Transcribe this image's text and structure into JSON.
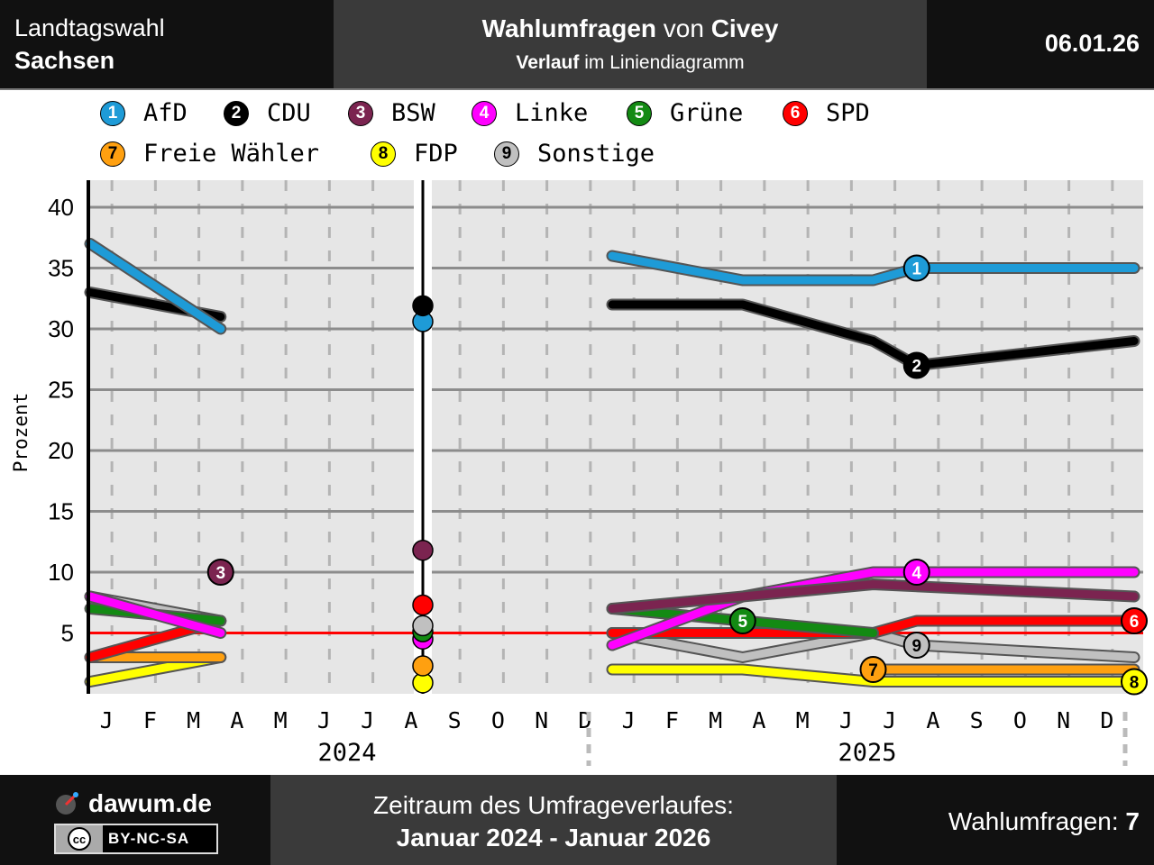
{
  "header": {
    "region_line1": "Landtagswahl",
    "region_line2": "Sachsen",
    "title_bold1": "Wahlumfragen",
    "title_mid": " von ",
    "title_bold2": "Civey",
    "subtitle_bold": "Verlauf",
    "subtitle_rest": " im Liniendiagramm",
    "date": "06.01.26"
  },
  "footer": {
    "brand": "dawum.de",
    "license": "BY-NC-SA",
    "span_label": "Zeitraum des Umfrageverlaufes:",
    "span_value": "Januar 2024 - Januar 2026",
    "count_label": "Wahlumfragen: ",
    "count_value": "7"
  },
  "legend": [
    {
      "num": "1",
      "name": "AfD",
      "color": "#1E9BD7"
    },
    {
      "num": "2",
      "name": "CDU",
      "color": "#000000"
    },
    {
      "num": "3",
      "name": "BSW",
      "color": "#7B2450"
    },
    {
      "num": "4",
      "name": "Linke",
      "color": "#FF00FF"
    },
    {
      "num": "5",
      "name": "Grüne",
      "color": "#138A13"
    },
    {
      "num": "6",
      "name": "SPD",
      "color": "#FF0000"
    },
    {
      "num": "7",
      "name": "Freie Wähler",
      "color": "#FFA010"
    },
    {
      "num": "8",
      "name": "FDP",
      "color": "#FFFF00"
    },
    {
      "num": "9",
      "name": "Sonstige",
      "color": "#C0C0C0"
    }
  ],
  "chart_data": {
    "type": "line",
    "ylabel": "Prozent",
    "ylim": [
      0,
      42
    ],
    "yticks": [
      5,
      10,
      15,
      20,
      25,
      30,
      35,
      40
    ],
    "threshold": 5,
    "x_range": [
      "2024-01",
      "2026-01"
    ],
    "month_labels": [
      "J",
      "F",
      "M",
      "A",
      "M",
      "J",
      "J",
      "A",
      "S",
      "O",
      "N",
      "D",
      "J",
      "F",
      "M",
      "A",
      "M",
      "J",
      "J",
      "A",
      "S",
      "O",
      "N",
      "D"
    ],
    "year_labels": [
      "2024",
      "2025"
    ],
    "election": {
      "date": "2024-09-01",
      "results": {
        "CDU": 31.9,
        "AfD": 30.6,
        "BSW": 11.8,
        "SPD": 7.3,
        "Sonstige": 5.6,
        "Grüne": 5.1,
        "Linke": 4.5,
        "Freie Wähler": 2.3,
        "FDP": 0.9
      }
    },
    "series": [
      {
        "name": "AfD",
        "num": "1",
        "color": "#1E9BD7",
        "segments": [
          [
            [
              "2024-01",
              37
            ],
            [
              "2024-04",
              30
            ]
          ],
          [
            [
              "2025-01",
              36
            ],
            [
              "2025-04",
              34
            ],
            [
              "2025-07",
              34
            ],
            [
              "2025-08",
              35
            ],
            [
              "2026-01",
              35
            ]
          ]
        ],
        "badge": [
          "2025-08",
          35
        ]
      },
      {
        "name": "CDU",
        "num": "2",
        "color": "#000000",
        "segments": [
          [
            [
              "2024-01",
              33
            ],
            [
              "2024-04",
              31
            ]
          ],
          [
            [
              "2025-01",
              32
            ],
            [
              "2025-04",
              32
            ],
            [
              "2025-07",
              29
            ],
            [
              "2025-08",
              27
            ],
            [
              "2026-01",
              29
            ]
          ]
        ],
        "badge": [
          "2025-08",
          27
        ]
      },
      {
        "name": "BSW",
        "num": "3",
        "color": "#7B2450",
        "segments": [
          [
            [
              "2025-01",
              7
            ],
            [
              "2025-07",
              9
            ],
            [
              "2026-01",
              8
            ]
          ]
        ],
        "badge": [
          "2024-04",
          10
        ]
      },
      {
        "name": "Linke",
        "num": "4",
        "color": "#FF00FF",
        "segments": [
          [
            [
              "2024-01",
              8
            ],
            [
              "2024-04",
              5
            ]
          ],
          [
            [
              "2025-01",
              4
            ],
            [
              "2025-04",
              8
            ],
            [
              "2025-07",
              10
            ],
            [
              "2026-01",
              10
            ]
          ]
        ],
        "badge": [
          "2025-08",
          10
        ]
      },
      {
        "name": "Grüne",
        "num": "5",
        "color": "#138A13",
        "segments": [
          [
            [
              "2024-01",
              7
            ],
            [
              "2024-04",
              6
            ]
          ],
          [
            [
              "2025-01",
              7
            ],
            [
              "2025-04",
              6
            ],
            [
              "2025-07",
              5
            ]
          ]
        ],
        "badge": [
          "2025-04",
          6
        ]
      },
      {
        "name": "SPD",
        "num": "6",
        "color": "#FF0000",
        "segments": [
          [
            [
              "2024-01",
              3
            ],
            [
              "2024-04",
              6
            ]
          ],
          [
            [
              "2025-01",
              5
            ],
            [
              "2025-07",
              5
            ],
            [
              "2025-08",
              6
            ],
            [
              "2026-01",
              6
            ]
          ]
        ],
        "badge": [
          "2026-01",
          6
        ]
      },
      {
        "name": "Freie Wähler",
        "num": "7",
        "color": "#FFA010",
        "segments": [
          [
            [
              "2024-01",
              3
            ],
            [
              "2024-04",
              3
            ]
          ],
          [
            [
              "2025-07",
              2
            ],
            [
              "2026-01",
              2
            ]
          ]
        ],
        "badge": [
          "2025-07",
          2
        ]
      },
      {
        "name": "FDP",
        "num": "8",
        "color": "#FFFF00",
        "segments": [
          [
            [
              "2024-01",
              1
            ],
            [
              "2024-04",
              3
            ]
          ],
          [
            [
              "2025-01",
              2
            ],
            [
              "2025-04",
              2
            ],
            [
              "2025-07",
              1
            ],
            [
              "2026-01",
              1
            ]
          ]
        ],
        "badge": [
          "2026-01",
          1
        ]
      },
      {
        "name": "Sonstige",
        "num": "9",
        "color": "#C0C0C0",
        "segments": [
          [
            [
              "2024-01",
              8
            ],
            [
              "2024-04",
              6
            ]
          ],
          [
            [
              "2025-01",
              5
            ],
            [
              "2025-04",
              3
            ],
            [
              "2025-07",
              5
            ],
            [
              "2025-08",
              4
            ],
            [
              "2026-01",
              3
            ]
          ]
        ],
        "badge": [
          "2025-08",
          4
        ]
      }
    ]
  }
}
